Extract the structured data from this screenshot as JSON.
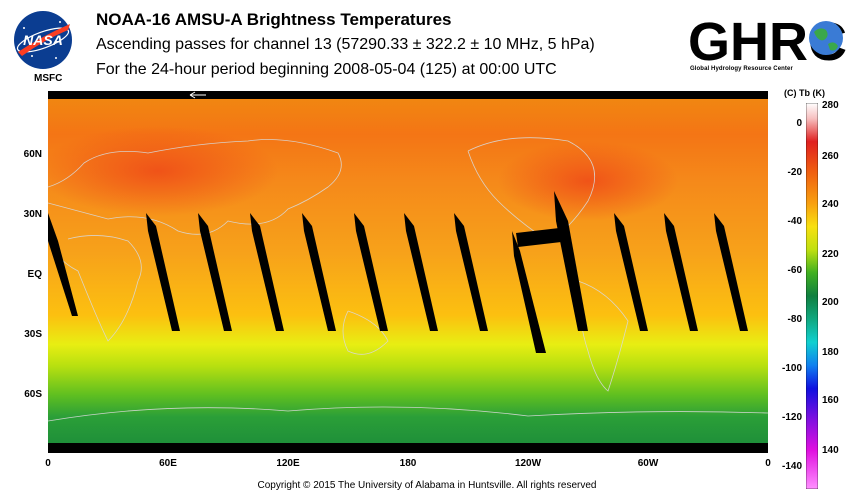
{
  "header": {
    "title": "NOAA-16 AMSU-A Brightness Temperatures",
    "subtitle": "Ascending passes for channel 13 (57290.33 ± 322.2 ± 10 MHz, 5 hPa)",
    "period": "For the 24-hour period beginning 2008-05-04 (125) at 00:00 UTC"
  },
  "logos": {
    "nasa_text": "NASA",
    "nasa_sub": "MSFC",
    "ghrc_text": "GHRC",
    "ghrc_sub": "Global Hydrology Resource Center"
  },
  "map": {
    "lat_labels": [
      "60N",
      "30N",
      "EQ",
      "30S",
      "60S"
    ],
    "lon_labels": [
      "0",
      "60E",
      "120E",
      "180",
      "120W",
      "60W",
      "0"
    ]
  },
  "colorbar": {
    "units": "(C)  Tb  (K)",
    "kelvin_labels": [
      "280",
      "260",
      "240",
      "220",
      "200",
      "180",
      "160",
      "140"
    ],
    "celsius_labels": [
      "0",
      "-20",
      "-40",
      "-60",
      "-80",
      "-100",
      "-120",
      "-140"
    ]
  },
  "footer": {
    "copyright": "Copyright © 2015 The University of Alabama in Huntsville.  All rights reserved"
  }
}
